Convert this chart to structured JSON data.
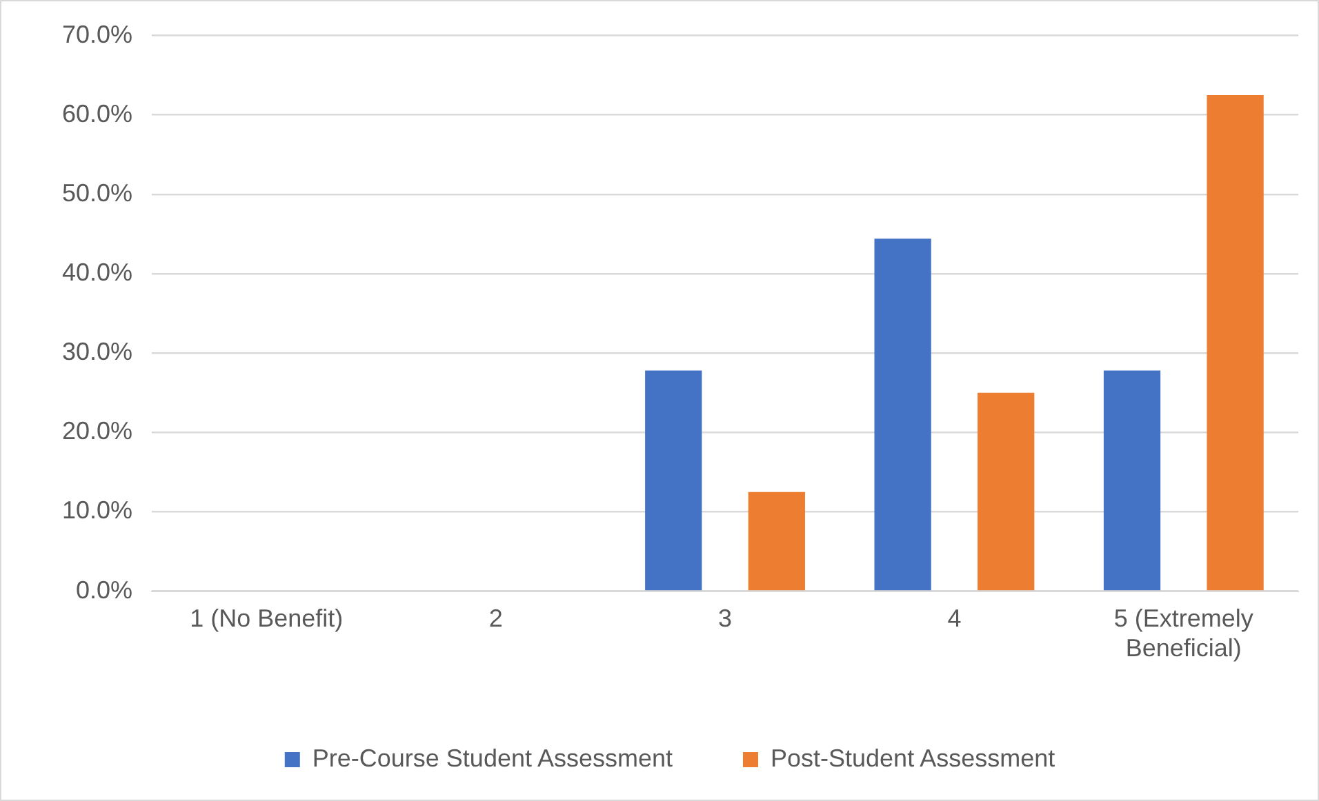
{
  "chart_data": {
    "type": "bar",
    "categories": [
      "1 (No Benefit)",
      "2",
      "3",
      "4",
      "5 (Extremely Beneficial)"
    ],
    "series": [
      {
        "name": "Pre-Course Student Assessment",
        "color": "#4472c4",
        "values": [
          0,
          0,
          27.8,
          44.4,
          27.8
        ]
      },
      {
        "name": "Post-Student Assessment",
        "color": "#ed7d31",
        "values": [
          0,
          0,
          12.5,
          25,
          62.5
        ]
      }
    ],
    "ylim": [
      0,
      70
    ],
    "yticks": [
      {
        "value": 0,
        "label": "0.0%"
      },
      {
        "value": 10,
        "label": "10.0%"
      },
      {
        "value": 20,
        "label": "20.0%"
      },
      {
        "value": 30,
        "label": "30.0%"
      },
      {
        "value": 40,
        "label": "40.0%"
      },
      {
        "value": 50,
        "label": "50.0%"
      },
      {
        "value": 60,
        "label": "60.0%"
      },
      {
        "value": 70,
        "label": "70.0%"
      }
    ],
    "grid": "y",
    "legend": "bottom"
  }
}
